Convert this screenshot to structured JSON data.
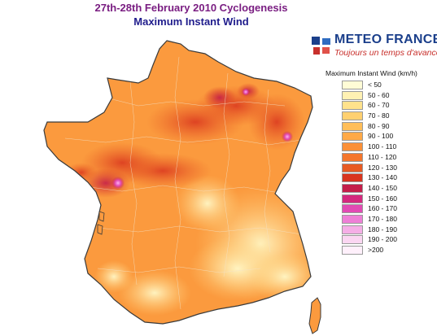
{
  "header": {
    "title": "27th-28th February 2010 Cyclogenesis",
    "subtitle": "Maximum Instant Wind",
    "title_color": "#7a1e82",
    "subtitle_color": "#1f1c8c"
  },
  "logo": {
    "name": "METEO FRANCE",
    "slogan": "Toujours un temps d'avance",
    "name_color": "#1b3f8b",
    "slogan_color": "#c8302c",
    "icon": "meteo-france-logo"
  },
  "legend": {
    "title": "Maximum Instant Wind (km/h)",
    "classes": [
      {
        "label": "< 50",
        "color": "#fffcd6"
      },
      {
        "label": "50 - 60",
        "color": "#fff1b3"
      },
      {
        "label": "60 - 70",
        "color": "#ffe28c"
      },
      {
        "label": "70 - 80",
        "color": "#ffd070"
      },
      {
        "label": "80 - 90",
        "color": "#ffbe59"
      },
      {
        "label": "90 - 100",
        "color": "#ffa947"
      },
      {
        "label": "100 - 110",
        "color": "#fb9037"
      },
      {
        "label": "110 - 120",
        "color": "#f4762c"
      },
      {
        "label": "120 - 130",
        "color": "#e85a22"
      },
      {
        "label": "130 - 140",
        "color": "#d9341e"
      },
      {
        "label": "140 - 150",
        "color": "#c41e4a"
      },
      {
        "label": "150 - 160",
        "color": "#d4287e"
      },
      {
        "label": "160 - 170",
        "color": "#e24ab4"
      },
      {
        "label": "170 - 180",
        "color": "#ee7fd6"
      },
      {
        "label": "180 - 190",
        "color": "#f5aee6"
      },
      {
        "label": "190 - 200",
        "color": "#fbd6f2"
      },
      {
        "label": ">200",
        "color": "#fff0fb"
      }
    ]
  },
  "map": {
    "outline_color": "#3a3a3a",
    "background": "#ffffff"
  }
}
